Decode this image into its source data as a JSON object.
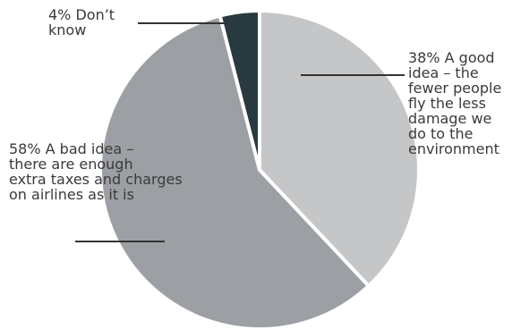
{
  "chart_data": {
    "type": "pie",
    "slices": [
      {
        "label": "A good idea – the fewer people fly the less damage we do to the environment",
        "value": 38,
        "color": "#c5c6c8"
      },
      {
        "label": "A bad idea – there are enough extra taxes and charges on airlines as it is",
        "value": 58,
        "color": "#9c9fa3"
      },
      {
        "label": "Don’t know",
        "value": 4,
        "color": "#283a3f"
      }
    ],
    "slice_labels": [
      {
        "lines": [
          "38% A good",
          "idea – the",
          "fewer people",
          "fly the less",
          "damage we",
          "do to the",
          "environment"
        ]
      },
      {
        "lines": [
          "58% A bad idea –",
          "there are enough",
          "extra taxes and charges",
          "on airlines as it is"
        ]
      },
      {
        "lines": [
          "4% Don’t",
          "know"
        ]
      }
    ]
  }
}
